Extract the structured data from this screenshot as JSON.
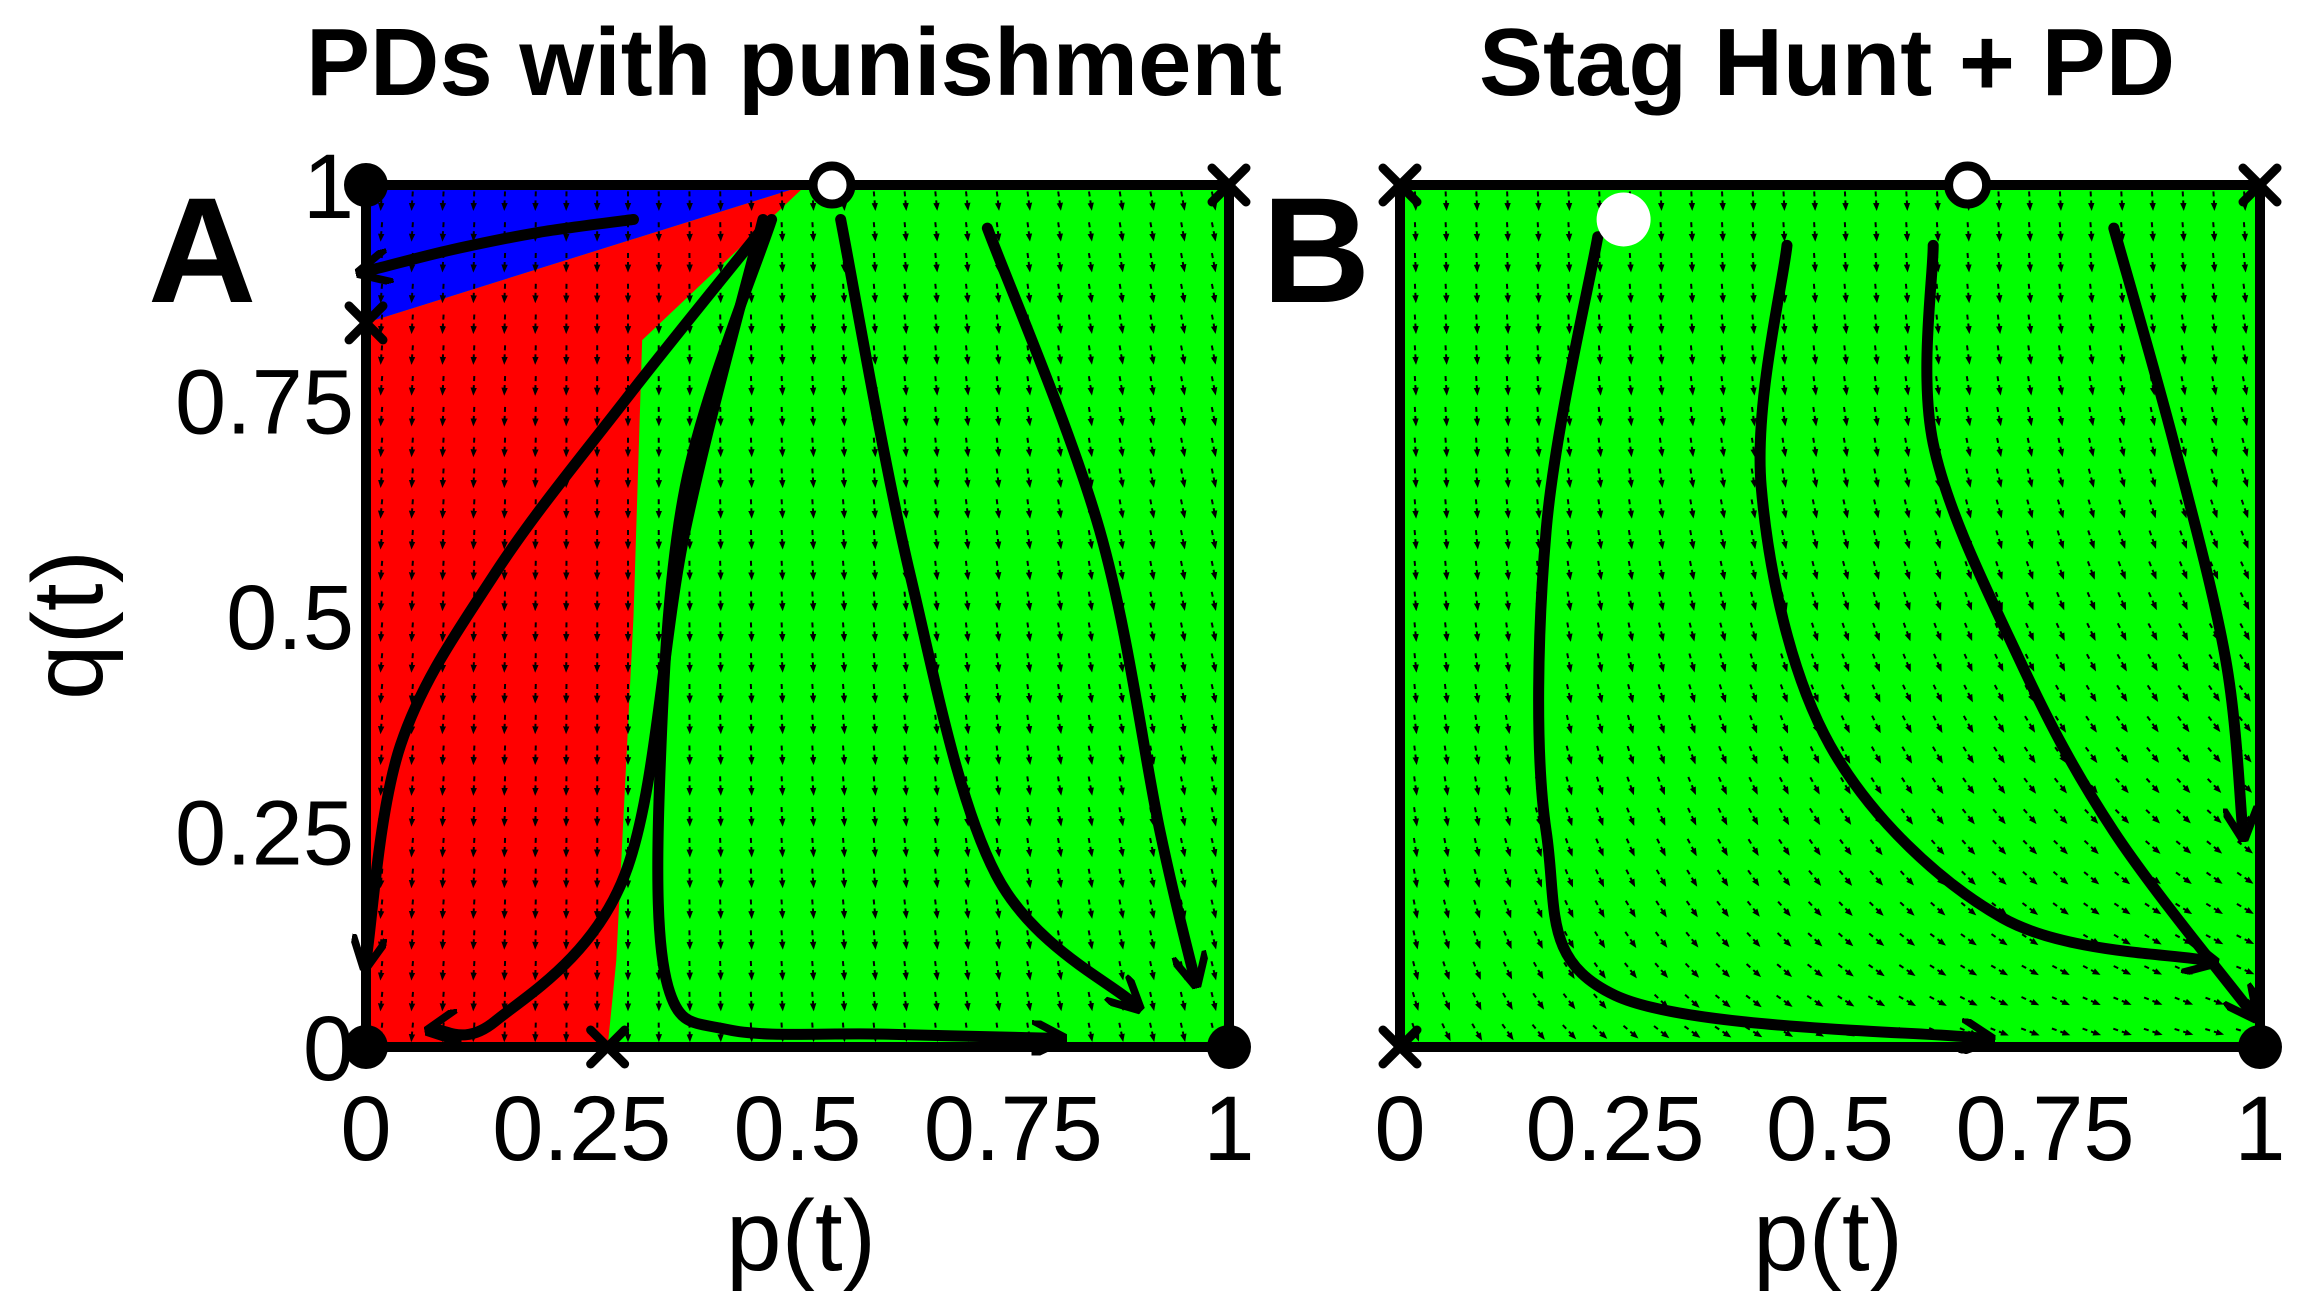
{
  "chart_data": [
    {
      "panel": "A",
      "type": "vector-field",
      "title": "PDs with punishment",
      "xlabel": "p(t)",
      "ylabel": "q(t)",
      "xlim": [
        0,
        1
      ],
      "ylim": [
        0,
        1
      ],
      "xticks": [
        "0",
        "0.25",
        "0.5",
        "0.75",
        "1"
      ],
      "xtick_values": [
        0,
        0.25,
        0.5,
        0.75,
        1
      ],
      "yticks": [
        "0",
        "0.25",
        "0.5",
        "0.75",
        "1"
      ],
      "ytick_values": [
        0,
        0.25,
        0.5,
        0.75,
        1
      ],
      "colors": {
        "blue_region": "#0000ff",
        "red_region": "#ff0000",
        "green_region": "#00ff00",
        "curve": "#000000"
      },
      "regions": [
        {
          "color": "#0000ff",
          "points": [
            [
              0,
              1
            ],
            [
              0.51,
              1
            ],
            [
              0,
              0.84
            ]
          ]
        },
        {
          "color": "#ff0000",
          "points": [
            [
              0,
              0.84
            ],
            [
              0.51,
              1
            ],
            [
              0.32,
              0.82
            ],
            [
              0.31,
              0.5
            ],
            [
              0.29,
              0.1
            ],
            [
              0.28,
              0
            ],
            [
              0,
              0
            ]
          ]
        }
      ],
      "fixed_points": [
        {
          "p": 0,
          "q": 1,
          "kind": "stable"
        },
        {
          "p": 0,
          "q": 0,
          "kind": "stable"
        },
        {
          "p": 1,
          "q": 0,
          "kind": "stable"
        },
        {
          "p": 0.54,
          "q": 1,
          "kind": "unstable"
        },
        {
          "p": 1,
          "q": 1,
          "kind": "saddle"
        },
        {
          "p": 0,
          "q": 0.84,
          "kind": "saddle"
        },
        {
          "p": 0.28,
          "q": 0,
          "kind": "saddle"
        }
      ],
      "trajectories": [
        [
          [
            0.31,
            0.96
          ],
          [
            0.2,
            0.945
          ],
          [
            0.1,
            0.925
          ],
          [
            0.02,
            0.905
          ],
          [
            0,
            0.9
          ]
        ],
        [
          [
            0.46,
            0.95
          ],
          [
            0.3,
            0.75
          ],
          [
            0.15,
            0.55
          ],
          [
            0.04,
            0.35
          ],
          [
            0,
            0.1
          ]
        ],
        [
          [
            0.46,
            0.96
          ],
          [
            0.37,
            0.6
          ],
          [
            0.3,
            0.2
          ],
          [
            0.15,
            0.03
          ],
          [
            0.08,
            0.02
          ]
        ],
        [
          [
            0.47,
            0.96
          ],
          [
            0.37,
            0.65
          ],
          [
            0.34,
            0.3
          ],
          [
            0.35,
            0.07
          ],
          [
            0.42,
            0.02
          ],
          [
            0.6,
            0.015
          ],
          [
            0.8,
            0.01
          ]
        ],
        [
          [
            0.55,
            0.96
          ],
          [
            0.63,
            0.55
          ],
          [
            0.73,
            0.2
          ],
          [
            0.89,
            0.05
          ]
        ],
        [
          [
            0.72,
            0.95
          ],
          [
            0.85,
            0.6
          ],
          [
            0.92,
            0.25
          ],
          [
            0.96,
            0.08
          ]
        ]
      ]
    },
    {
      "panel": "B",
      "type": "vector-field",
      "title": "Stag Hunt + PD",
      "xlabel": "p(t)",
      "ylabel": "",
      "xlim": [
        0,
        1
      ],
      "ylim": [
        0,
        1
      ],
      "xticks": [
        "0",
        "0.25",
        "0.5",
        "0.75",
        "1"
      ],
      "xtick_values": [
        0,
        0.25,
        0.5,
        0.75,
        1
      ],
      "colors": {
        "green_region": "#00ff00",
        "curve": "#000000"
      },
      "regions": [],
      "fixed_points": [
        {
          "p": 0,
          "q": 1,
          "kind": "saddle"
        },
        {
          "p": 0,
          "q": 0,
          "kind": "saddle"
        },
        {
          "p": 1,
          "q": 1,
          "kind": "saddle"
        },
        {
          "p": 1,
          "q": 0,
          "kind": "stable"
        },
        {
          "p": 0.66,
          "q": 1,
          "kind": "unstable"
        },
        {
          "p": 0.26,
          "q": 0.96,
          "kind": "white-dot"
        }
      ],
      "trajectories": [
        [
          [
            0.23,
            0.94
          ],
          [
            0.17,
            0.6
          ],
          [
            0.17,
            0.25
          ],
          [
            0.25,
            0.06
          ],
          [
            0.68,
            0.01
          ]
        ],
        [
          [
            0.45,
            0.93
          ],
          [
            0.42,
            0.65
          ],
          [
            0.5,
            0.35
          ],
          [
            0.7,
            0.15
          ],
          [
            0.94,
            0.1
          ]
        ],
        [
          [
            0.62,
            0.93
          ],
          [
            0.62,
            0.7
          ],
          [
            0.72,
            0.45
          ],
          [
            0.83,
            0.25
          ],
          [
            0.99,
            0.04
          ]
        ],
        [
          [
            0.83,
            0.95
          ],
          [
            0.9,
            0.7
          ],
          [
            0.96,
            0.45
          ],
          [
            0.98,
            0.25
          ]
        ]
      ]
    }
  ]
}
